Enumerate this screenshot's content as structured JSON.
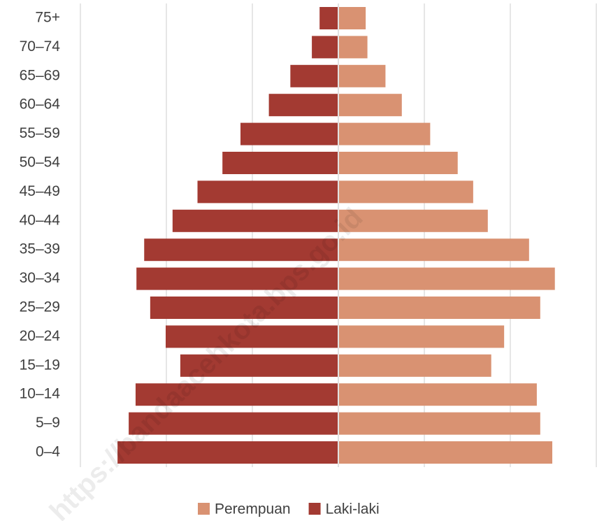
{
  "chart_data": {
    "type": "pyramid",
    "categories": [
      "0–4",
      "5–9",
      "10–14",
      "15–19",
      "20–24",
      "25–29",
      "30–34",
      "35–39",
      "40–44",
      "45–49",
      "50–54",
      "55–59",
      "60–64",
      "65–69",
      "70–74",
      "75+"
    ],
    "series": [
      {
        "name": "Laki-laki",
        "color": "#a33a32",
        "side": "left",
        "values": [
          2.56,
          2.43,
          2.35,
          1.83,
          2.0,
          2.18,
          2.34,
          2.25,
          1.92,
          1.63,
          1.34,
          1.13,
          0.8,
          0.55,
          0.3,
          0.21
        ]
      },
      {
        "name": "Perempuan",
        "color": "#d99272",
        "side": "right",
        "values": [
          2.48,
          2.34,
          2.3,
          1.77,
          1.92,
          2.34,
          2.51,
          2.21,
          1.73,
          1.56,
          1.38,
          1.06,
          0.73,
          0.54,
          0.33,
          0.31
        ]
      }
    ],
    "legend_order": [
      1,
      0
    ],
    "xlim": [
      -3,
      3
    ],
    "xticks": [
      -3,
      -2,
      -1,
      0,
      1,
      2,
      3
    ],
    "grid": true,
    "watermark": "https://bandaacehkota.bps.go.id"
  }
}
